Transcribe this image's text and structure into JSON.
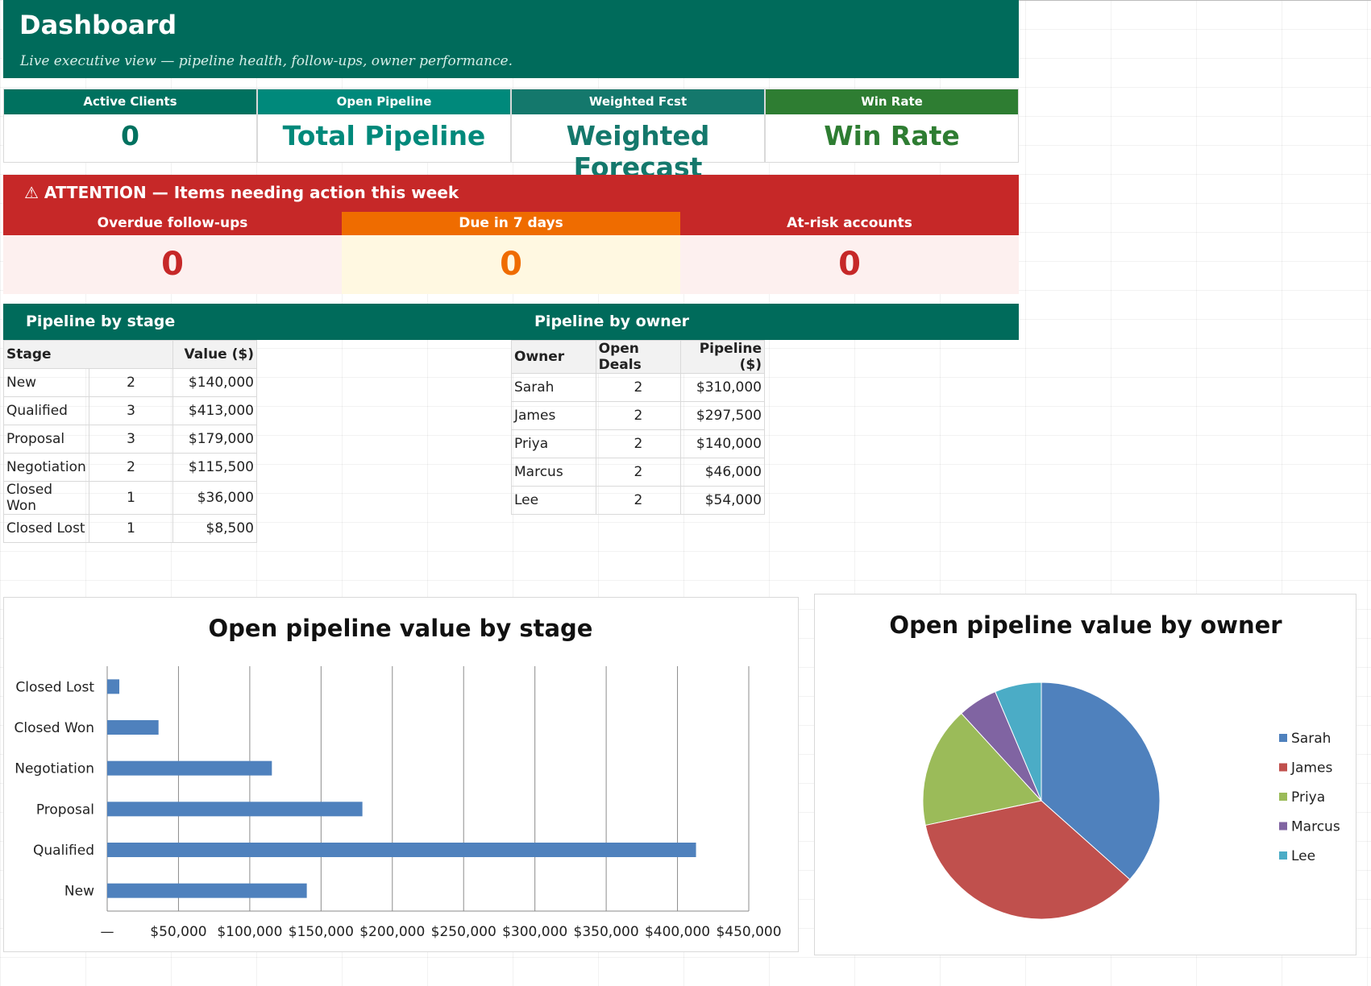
{
  "header": {
    "title": "Dashboard",
    "subtitle": "Live executive view — pipeline health, follow-ups, owner performance."
  },
  "kpis": [
    {
      "label": "Active Clients",
      "value": "0",
      "label_bg": "#00715f",
      "value_color": "#00715f"
    },
    {
      "label": "Open Pipeline",
      "value": "Total Pipeline",
      "label_bg": "#00897b",
      "value_color": "#00897b"
    },
    {
      "label": "Weighted Fcst",
      "value": "Weighted Forecast",
      "label_bg": "#14786c",
      "value_color": "#14786c"
    },
    {
      "label": "Win Rate",
      "value": "Win Rate",
      "label_bg": "#2e7d32",
      "value_color": "#2e7d32"
    }
  ],
  "attention": {
    "icon": "warning-icon",
    "title": "⚠ ATTENTION — Items needing action this week",
    "items": [
      {
        "label": "Overdue follow-ups",
        "value": "0",
        "label_bg": "#c62828",
        "value_bg": "#fdf0ef",
        "value_color": "#c62828"
      },
      {
        "label": "Due in 7 days",
        "value": "0",
        "label_bg": "#ef6c00",
        "value_bg": "#fff8e1",
        "value_color": "#ef6c00"
      },
      {
        "label": "At-risk accounts",
        "value": "0",
        "label_bg": "#c62828",
        "value_bg": "#fdf0ef",
        "value_color": "#c62828"
      }
    ]
  },
  "stage_section": {
    "title": "Pipeline by stage",
    "headers": [
      "Stage",
      "Value ($)"
    ],
    "rows": [
      {
        "stage": "New",
        "count": "2",
        "value": "$140,000"
      },
      {
        "stage": "Qualified",
        "count": "3",
        "value": "$413,000"
      },
      {
        "stage": "Proposal",
        "count": "3",
        "value": "$179,000"
      },
      {
        "stage": "Negotiation",
        "count": "2",
        "value": "$115,500"
      },
      {
        "stage": "Closed Won",
        "count": "1",
        "value": "$36,000"
      },
      {
        "stage": "Closed Lost",
        "count": "1",
        "value": "$8,500"
      }
    ]
  },
  "owner_section": {
    "title": "Pipeline by owner",
    "headers": [
      "Owner",
      "Open Deals",
      "Pipeline ($)"
    ],
    "rows": [
      {
        "owner": "Sarah",
        "deals": "2",
        "pipeline": "$310,000"
      },
      {
        "owner": "James",
        "deals": "2",
        "pipeline": "$297,500"
      },
      {
        "owner": "Priya",
        "deals": "2",
        "pipeline": "$140,000"
      },
      {
        "owner": "Marcus",
        "deals": "2",
        "pipeline": "$46,000"
      },
      {
        "owner": "Lee",
        "deals": "2",
        "pipeline": "$54,000"
      }
    ]
  },
  "chart_data": [
    {
      "type": "bar",
      "orientation": "horizontal",
      "title": "Open pipeline value by stage",
      "categories": [
        "Closed Lost",
        "Closed Won",
        "Negotiation",
        "Proposal",
        "Qualified",
        "New"
      ],
      "values": [
        8500,
        36000,
        115500,
        179000,
        413000,
        140000
      ],
      "xlim": [
        0,
        450000
      ],
      "x_ticks": [
        "—",
        "$50,000",
        "$100,000",
        "$150,000",
        "$200,000",
        "$250,000",
        "$300,000",
        "$350,000",
        "$400,000",
        "$450,000"
      ],
      "grid": "vertical",
      "bar_color": "#4f81bd"
    },
    {
      "type": "pie",
      "title": "Open pipeline value by owner",
      "labels": [
        "Sarah",
        "James",
        "Priya",
        "Marcus",
        "Lee"
      ],
      "values": [
        310000,
        297500,
        140000,
        46000,
        54000
      ],
      "colors": [
        "#4f81bd",
        "#c0504d",
        "#9bbb59",
        "#8064a2",
        "#4bacc6"
      ],
      "legend": "right"
    }
  ]
}
